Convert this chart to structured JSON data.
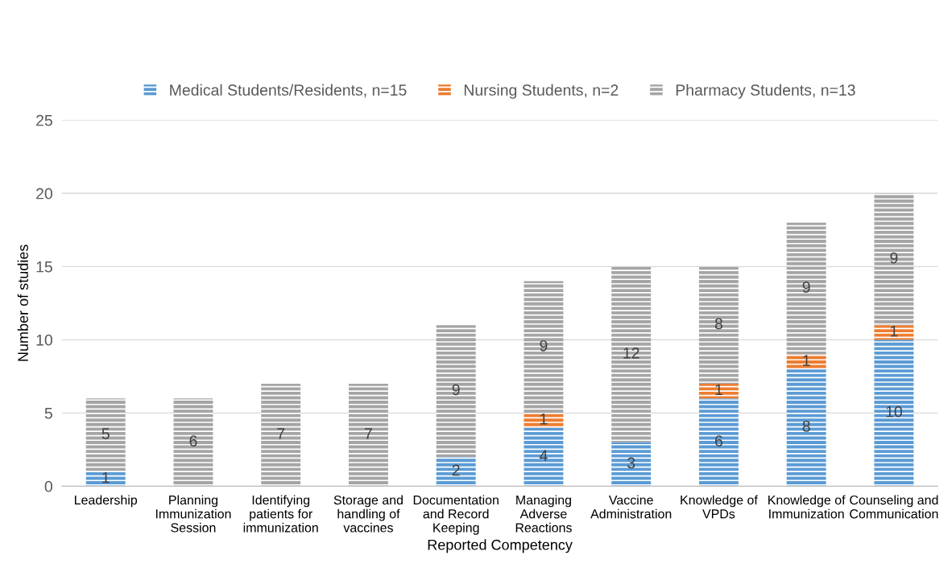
{
  "chart_data": {
    "type": "bar",
    "stacked": true,
    "xlabel": "Reported Competency",
    "ylabel": "Number of studies",
    "categories": [
      "Leadership",
      "Planning\nImmunization\nSession",
      "Identifying\npatients for\nimmunization",
      "Storage and\nhandling of\nvaccines",
      "Documentation\nand Record\nKeeping",
      "Managing\nAdverse\nReactions",
      "Vaccine\nAdministration",
      "Knowledge of\nVPDs",
      "Knowledge of\nImmunization",
      "Counseling and\nCommunication"
    ],
    "series": [
      {
        "name": "Medical Students/Residents, n=15",
        "color": "#5b9bd5",
        "values": [
          1,
          0,
          0,
          0,
          2,
          4,
          3,
          6,
          8,
          10
        ],
        "value_labels": [
          "1",
          null,
          null,
          null,
          "2",
          "4",
          "3",
          "6",
          "8",
          "10"
        ]
      },
      {
        "name": "Nursing Students, n=2",
        "color": "#ed7d31",
        "values": [
          0,
          0,
          0,
          0,
          0,
          1,
          0,
          1,
          1,
          1
        ],
        "value_labels": [
          null,
          null,
          null,
          null,
          null,
          "1",
          null,
          "1",
          "1",
          "1"
        ]
      },
      {
        "name": "Pharmacy Students, n=13",
        "color": "#a5a5a5",
        "values": [
          5,
          6,
          7,
          7,
          9,
          9,
          12,
          8,
          9,
          9
        ],
        "value_labels": [
          "5",
          "6",
          "7",
          "7",
          "9",
          "9",
          "12",
          "8",
          "9",
          "9"
        ]
      }
    ],
    "ylim": [
      0,
      25
    ],
    "yticks": [
      0,
      5,
      10,
      15,
      20,
      25
    ],
    "grid": "y",
    "legend": "top"
  }
}
